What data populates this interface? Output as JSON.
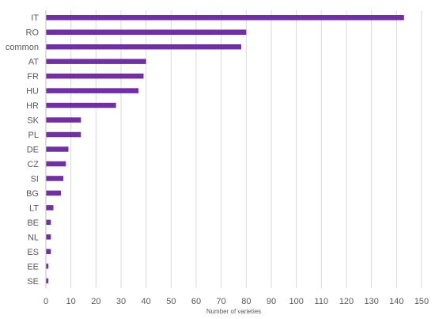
{
  "chart_data": {
    "type": "bar",
    "orientation": "horizontal",
    "title": "",
    "xlabel": "Number of varieties",
    "ylabel": "",
    "xlim": [
      0,
      150
    ],
    "x_ticks": [
      0,
      10,
      20,
      30,
      40,
      50,
      60,
      70,
      80,
      90,
      100,
      110,
      120,
      130,
      140,
      150
    ],
    "grid": true,
    "legend": "none",
    "categories": [
      "IT",
      "RO",
      "common",
      "AT",
      "FR",
      "HU",
      "HR",
      "SK",
      "PL",
      "DE",
      "CZ",
      "SI",
      "BG",
      "LT",
      "BE",
      "NL",
      "ES",
      "EE",
      "SE"
    ],
    "values": [
      143,
      80,
      78,
      40,
      39,
      37,
      28,
      14,
      14,
      9,
      8,
      7,
      6,
      3,
      2,
      2,
      2,
      1,
      1
    ],
    "bar_color": "#7030A0",
    "grid_color": "#d9d9d9"
  }
}
